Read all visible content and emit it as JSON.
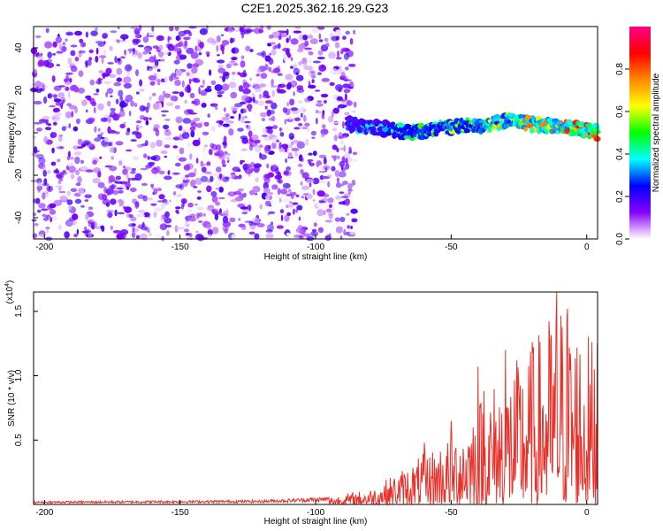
{
  "title": "C2E1.2025.362.16.29.G23",
  "chart_data": [
    {
      "type": "heatmap",
      "xlabel": "Height of straight line (km)",
      "ylabel": "Frequency (Hz)",
      "xlim": [
        -204,
        4
      ],
      "ylim": [
        -50,
        50
      ],
      "x_ticks": [
        -200,
        -150,
        -100,
        -50,
        0
      ],
      "y_ticks": [
        -40,
        -20,
        0,
        20,
        40
      ],
      "colorbar": {
        "label": "Normalized spectral amplitude",
        "range": [
          0,
          1
        ],
        "ticks": [
          0.0,
          0.2,
          0.4,
          0.6,
          0.8
        ],
        "tick_labels": [
          "0.0",
          "0.2",
          "0.4",
          "0.6",
          "0.8"
        ],
        "colors": [
          "#ffffff",
          "#8800ff",
          "#0000ff",
          "#00ffff",
          "#00ff00",
          "#ffff00",
          "#ff8800",
          "#ff0000",
          "#ff0088"
        ]
      },
      "noise_region_x": [
        -204,
        -88
      ],
      "noise_amplitude_range": [
        0.0,
        0.2
      ],
      "signal_track": {
        "x_start": -88,
        "x_end": 4,
        "frequency_hz": [
          {
            "x": -88,
            "y": 4
          },
          {
            "x": -75,
            "y": 2
          },
          {
            "x": -65,
            "y": 0
          },
          {
            "x": -55,
            "y": 2
          },
          {
            "x": -45,
            "y": 3
          },
          {
            "x": -35,
            "y": 4
          },
          {
            "x": -28,
            "y": 6
          },
          {
            "x": -20,
            "y": 4
          },
          {
            "x": -10,
            "y": 3
          },
          {
            "x": 0,
            "y": 1
          },
          {
            "x": 4,
            "y": 0
          }
        ],
        "amplitude_range": [
          0.15,
          0.95
        ]
      }
    },
    {
      "type": "line",
      "xlabel": "Height of straight line (km)",
      "ylabel": "SNR (10 * v/v)",
      "y_multiplier": "(x10",
      "y_multiplier_exponent": "4",
      "y_multiplier_close": ")",
      "xlim": [
        -204,
        4
      ],
      "ylim": [
        0,
        16500
      ],
      "x_ticks": [
        -200,
        -150,
        -100,
        -50,
        0
      ],
      "y_ticks": [
        5000,
        10000,
        15000
      ],
      "y_tick_labels": [
        "0.5",
        "1.0",
        "1.5"
      ],
      "color": "#e8302a",
      "envelope": [
        {
          "x": -204,
          "y": 250
        },
        {
          "x": -120,
          "y": 350
        },
        {
          "x": -95,
          "y": 600
        },
        {
          "x": -80,
          "y": 1200
        },
        {
          "x": -70,
          "y": 2500
        },
        {
          "x": -60,
          "y": 4000
        },
        {
          "x": -50,
          "y": 5500
        },
        {
          "x": -40,
          "y": 8500
        },
        {
          "x": -30,
          "y": 10500
        },
        {
          "x": -20,
          "y": 12500
        },
        {
          "x": -10,
          "y": 16500
        },
        {
          "x": -5,
          "y": 15000
        },
        {
          "x": 0,
          "y": 13500
        },
        {
          "x": 4,
          "y": 13000
        }
      ],
      "peaks": [
        {
          "x": -11,
          "y": 16500
        },
        {
          "x": -7,
          "y": 15200
        },
        {
          "x": -20,
          "y": 12600
        },
        {
          "x": -30,
          "y": 12000
        },
        {
          "x": -40,
          "y": 10700
        },
        {
          "x": -38,
          "y": 8800
        },
        {
          "x": -50,
          "y": 6500
        },
        {
          "x": -60,
          "y": 4800
        },
        {
          "x": 4,
          "y": 13100
        }
      ],
      "endpoint": {
        "x": 4,
        "y": 12500
      }
    }
  ]
}
